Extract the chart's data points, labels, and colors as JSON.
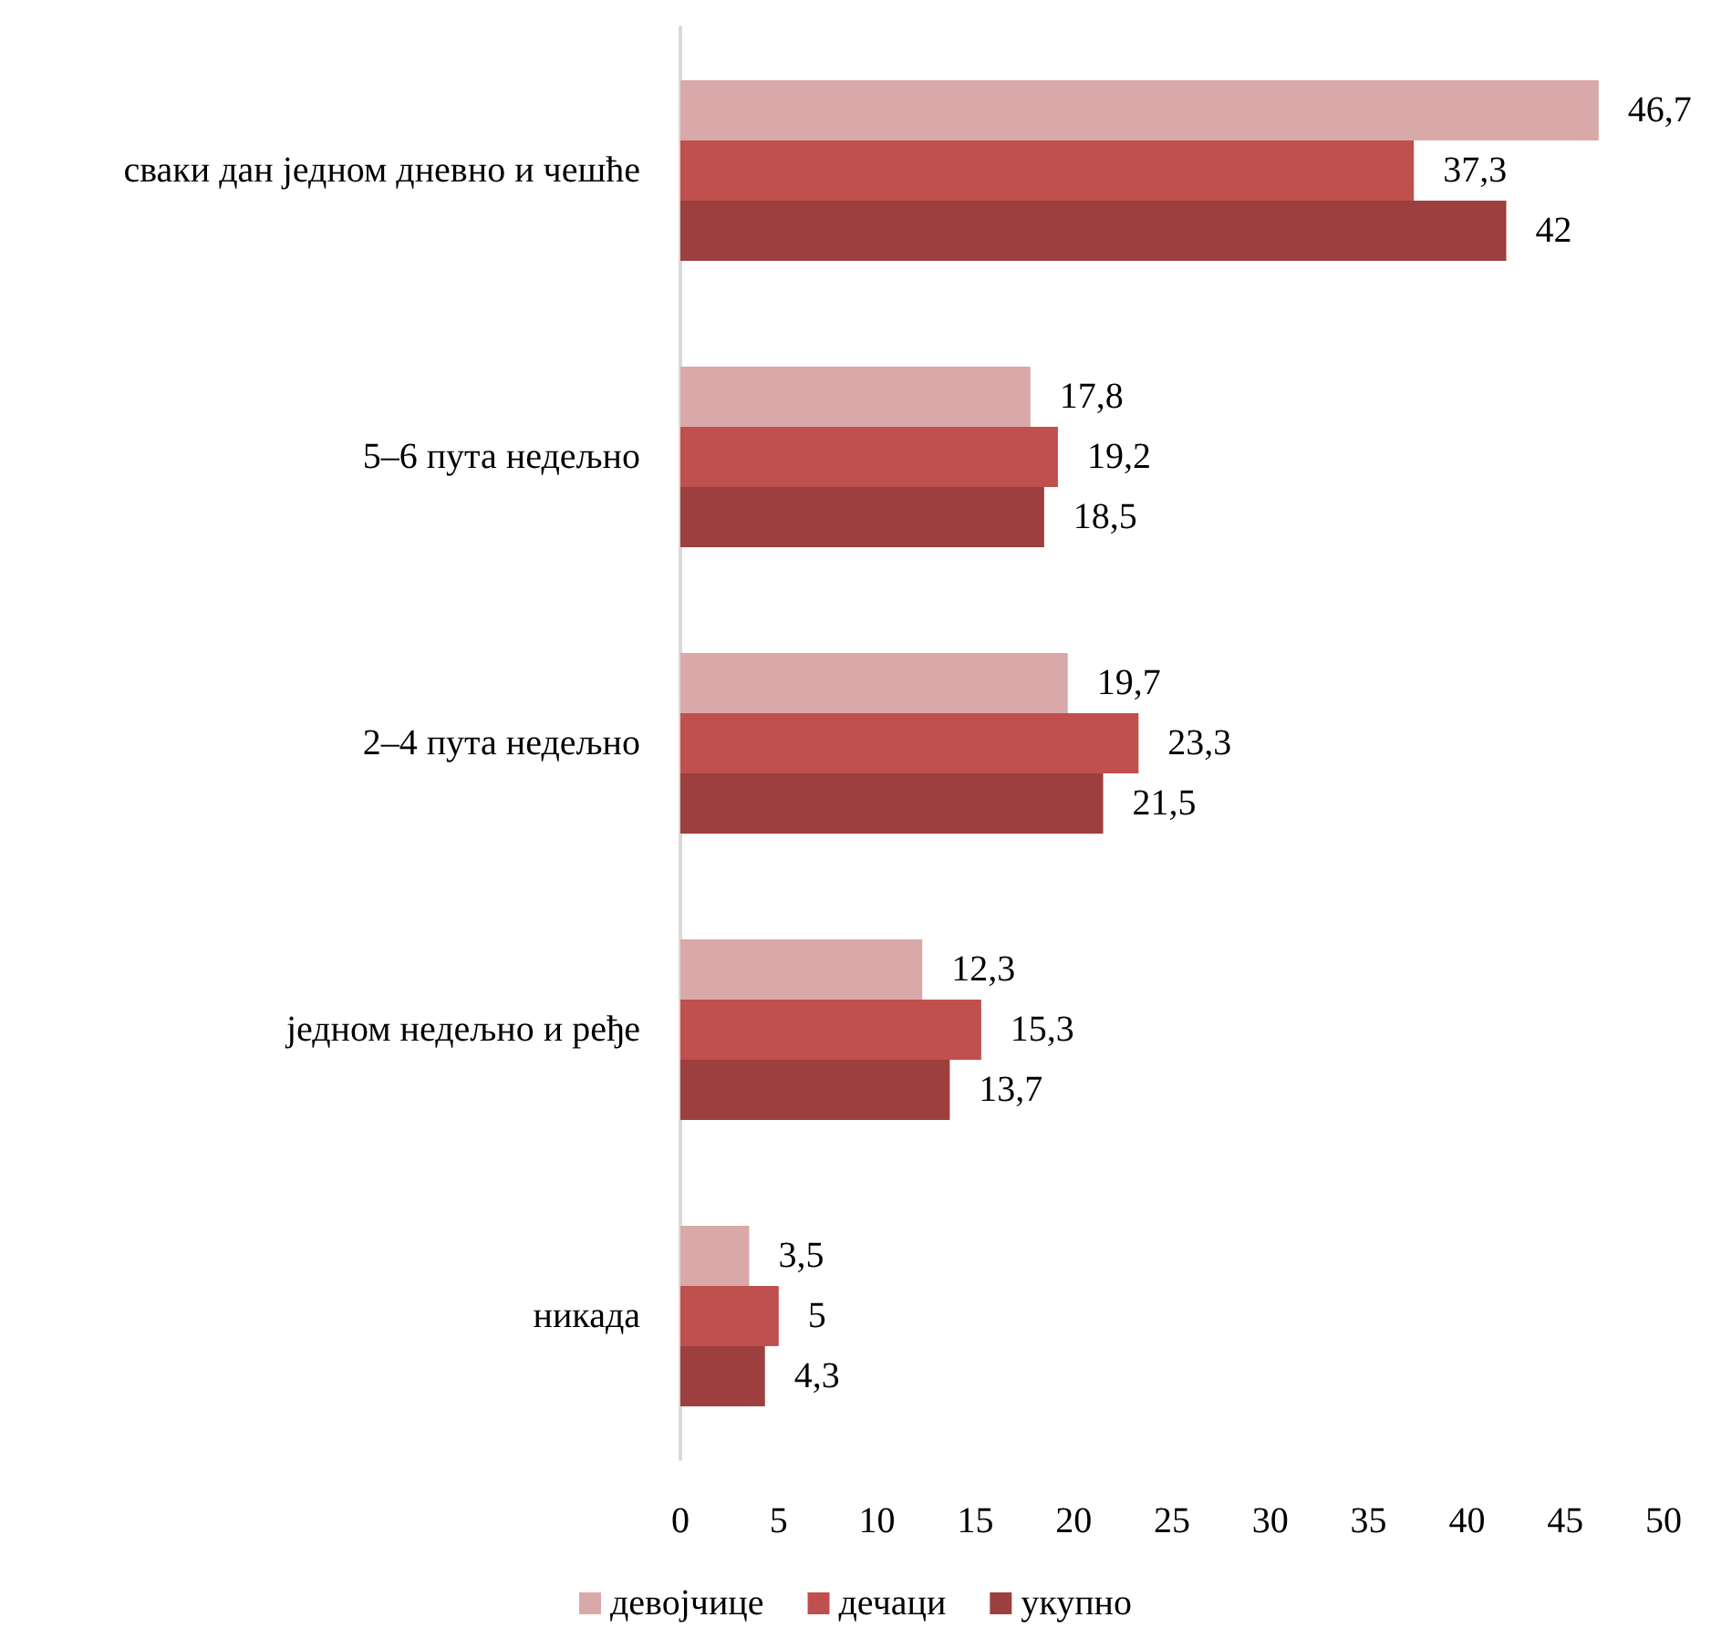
{
  "chart_data": {
    "type": "bar",
    "orientation": "horizontal",
    "categories": [
      "сваки дан једном дневно и чешће",
      "5–6 пута недељно",
      "2–4 пута недељно",
      "једном недељно и ређе",
      "никада"
    ],
    "series": [
      {
        "name": "девојчице",
        "color": "#d9a9a9",
        "values": [
          46.7,
          17.8,
          19.7,
          12.3,
          3.5
        ],
        "value_labels": [
          "46,7",
          "17,8",
          "19,7",
          "12,3",
          "3,5"
        ]
      },
      {
        "name": "дечаци",
        "color": "#c0504d",
        "values": [
          37.3,
          19.2,
          23.3,
          15.3,
          5
        ],
        "value_labels": [
          "37,3",
          "19,2",
          "23,3",
          "15,3",
          "5"
        ]
      },
      {
        "name": "укупно",
        "color": "#9d3f3e",
        "values": [
          42,
          18.5,
          21.5,
          13.7,
          4.3
        ],
        "value_labels": [
          "42",
          "18,5",
          "21,5",
          "13,7",
          "4,3"
        ]
      }
    ],
    "xlim": [
      0,
      50
    ],
    "xticks": [
      0,
      5,
      10,
      15,
      20,
      25,
      30,
      35,
      40,
      45,
      50
    ],
    "legend": "bottom"
  }
}
